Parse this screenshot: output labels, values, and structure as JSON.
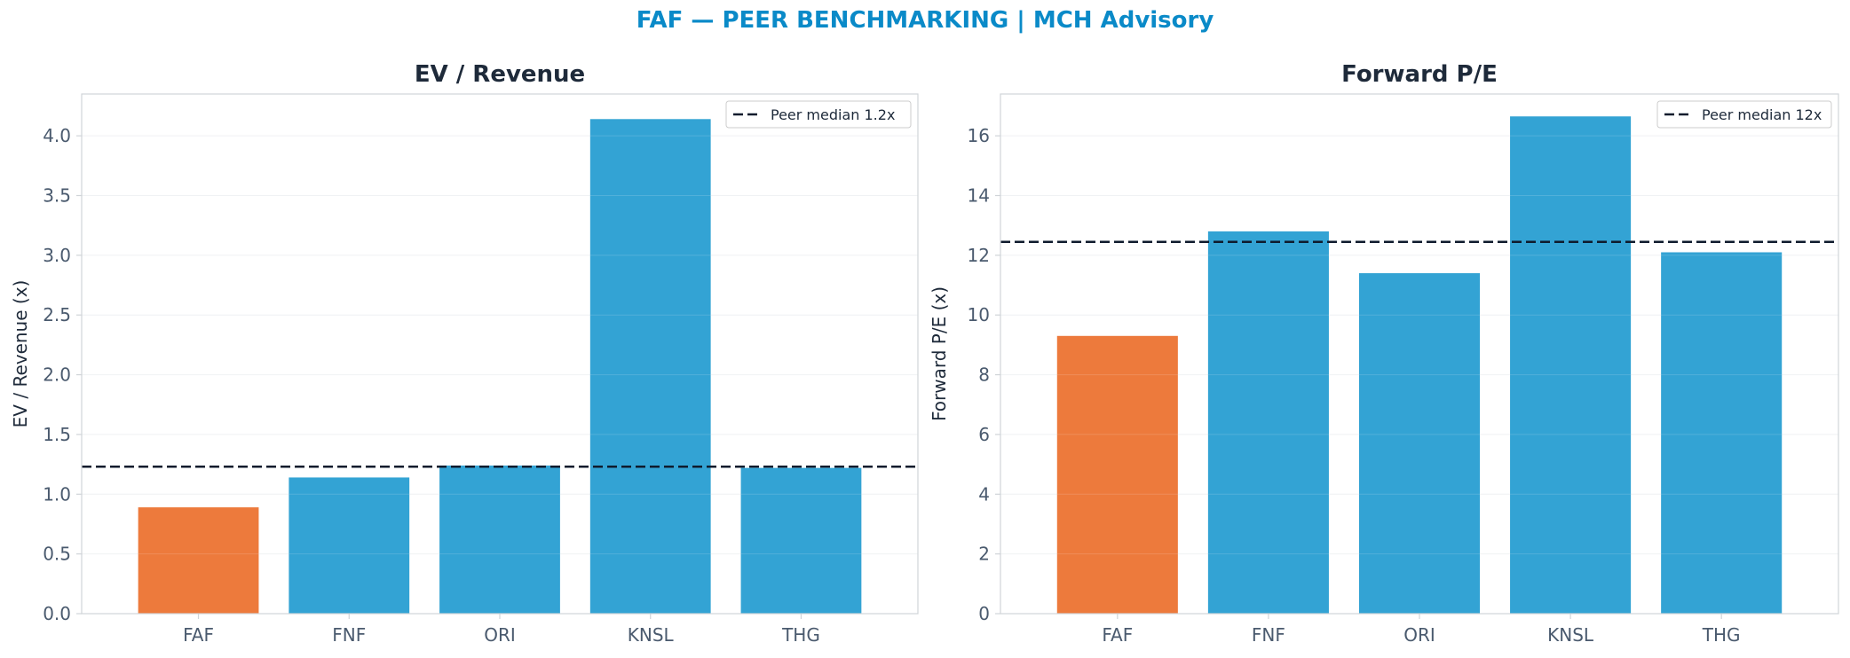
{
  "header": {
    "title": "FAF — PEER BENCHMARKING | MCH Advisory"
  },
  "colors": {
    "title": "#0a8ac8",
    "highlight": "#ed7a3c",
    "peer": "#33a3d4",
    "median": "#0f1b2d",
    "axis": "#d0d4d8",
    "grid": "#eef0f2"
  },
  "chart_data": [
    {
      "type": "bar",
      "title": "EV / Revenue",
      "ylabel": "EV / Revenue (x)",
      "categories": [
        "FAF",
        "FNF",
        "ORI",
        "KNSL",
        "THG"
      ],
      "values": [
        0.89,
        1.14,
        1.24,
        4.14,
        1.22
      ],
      "highlight": "FAF",
      "ylim": [
        0,
        4.35
      ],
      "yticks": [
        0.0,
        0.5,
        1.0,
        1.5,
        2.0,
        2.5,
        3.0,
        3.5,
        4.0
      ],
      "reference_line": {
        "value": 1.23,
        "label": "Peer median 1.2x",
        "style": "dashed"
      },
      "legend_position": "top-right",
      "grid": true
    },
    {
      "type": "bar",
      "title": "Forward P/E",
      "ylabel": "Forward P/E (x)",
      "categories": [
        "FAF",
        "FNF",
        "ORI",
        "KNSL",
        "THG"
      ],
      "values": [
        9.3,
        12.8,
        11.4,
        16.65,
        12.1
      ],
      "highlight": "FAF",
      "ylim": [
        0,
        17.4
      ],
      "yticks": [
        0,
        2,
        4,
        6,
        8,
        10,
        12,
        14,
        16
      ],
      "reference_line": {
        "value": 12.45,
        "label": "Peer median 12x",
        "style": "dashed"
      },
      "legend_position": "top-right",
      "grid": true
    }
  ]
}
